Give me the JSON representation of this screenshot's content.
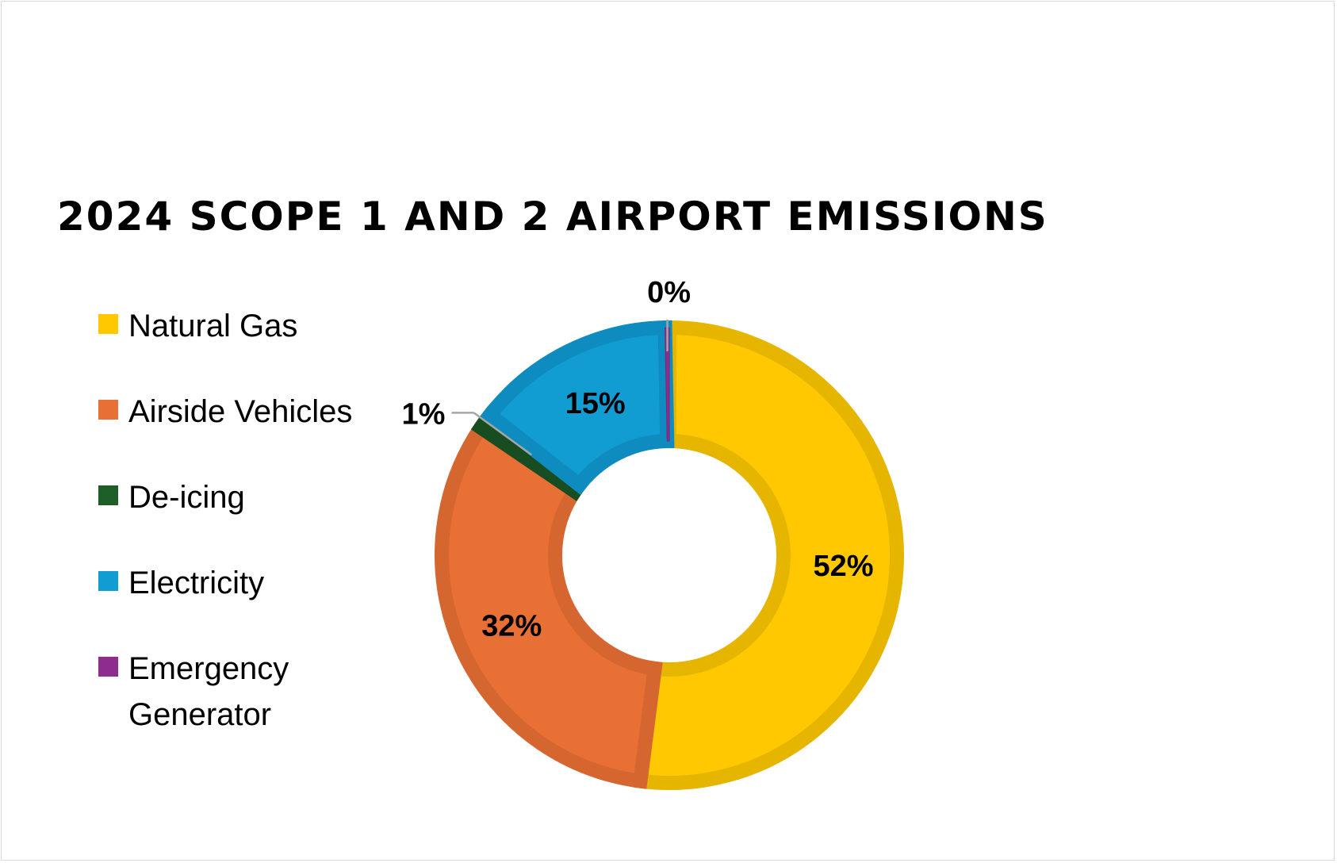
{
  "chart_data": {
    "type": "pie",
    "title": "2024 SCOPE 1 AND 2 AIRPORT EMISSIONS",
    "legend_position": "left",
    "categories": [
      "Natural Gas",
      "Airside Vehicles",
      "De-icing",
      "Electricity",
      "Emergency Generator"
    ],
    "values": [
      52,
      32,
      1,
      15,
      0
    ],
    "data_labels": [
      "52%",
      "32%",
      "1%",
      "15%",
      "0%"
    ],
    "colors": [
      "#FFC800",
      "#E87035",
      "#1E5E28",
      "#119DD2",
      "#8E2E8C"
    ],
    "border_colors": [
      "#E5B500",
      "#D66630",
      "#174D20",
      "#0E8CC0",
      "#7A2478"
    ]
  }
}
